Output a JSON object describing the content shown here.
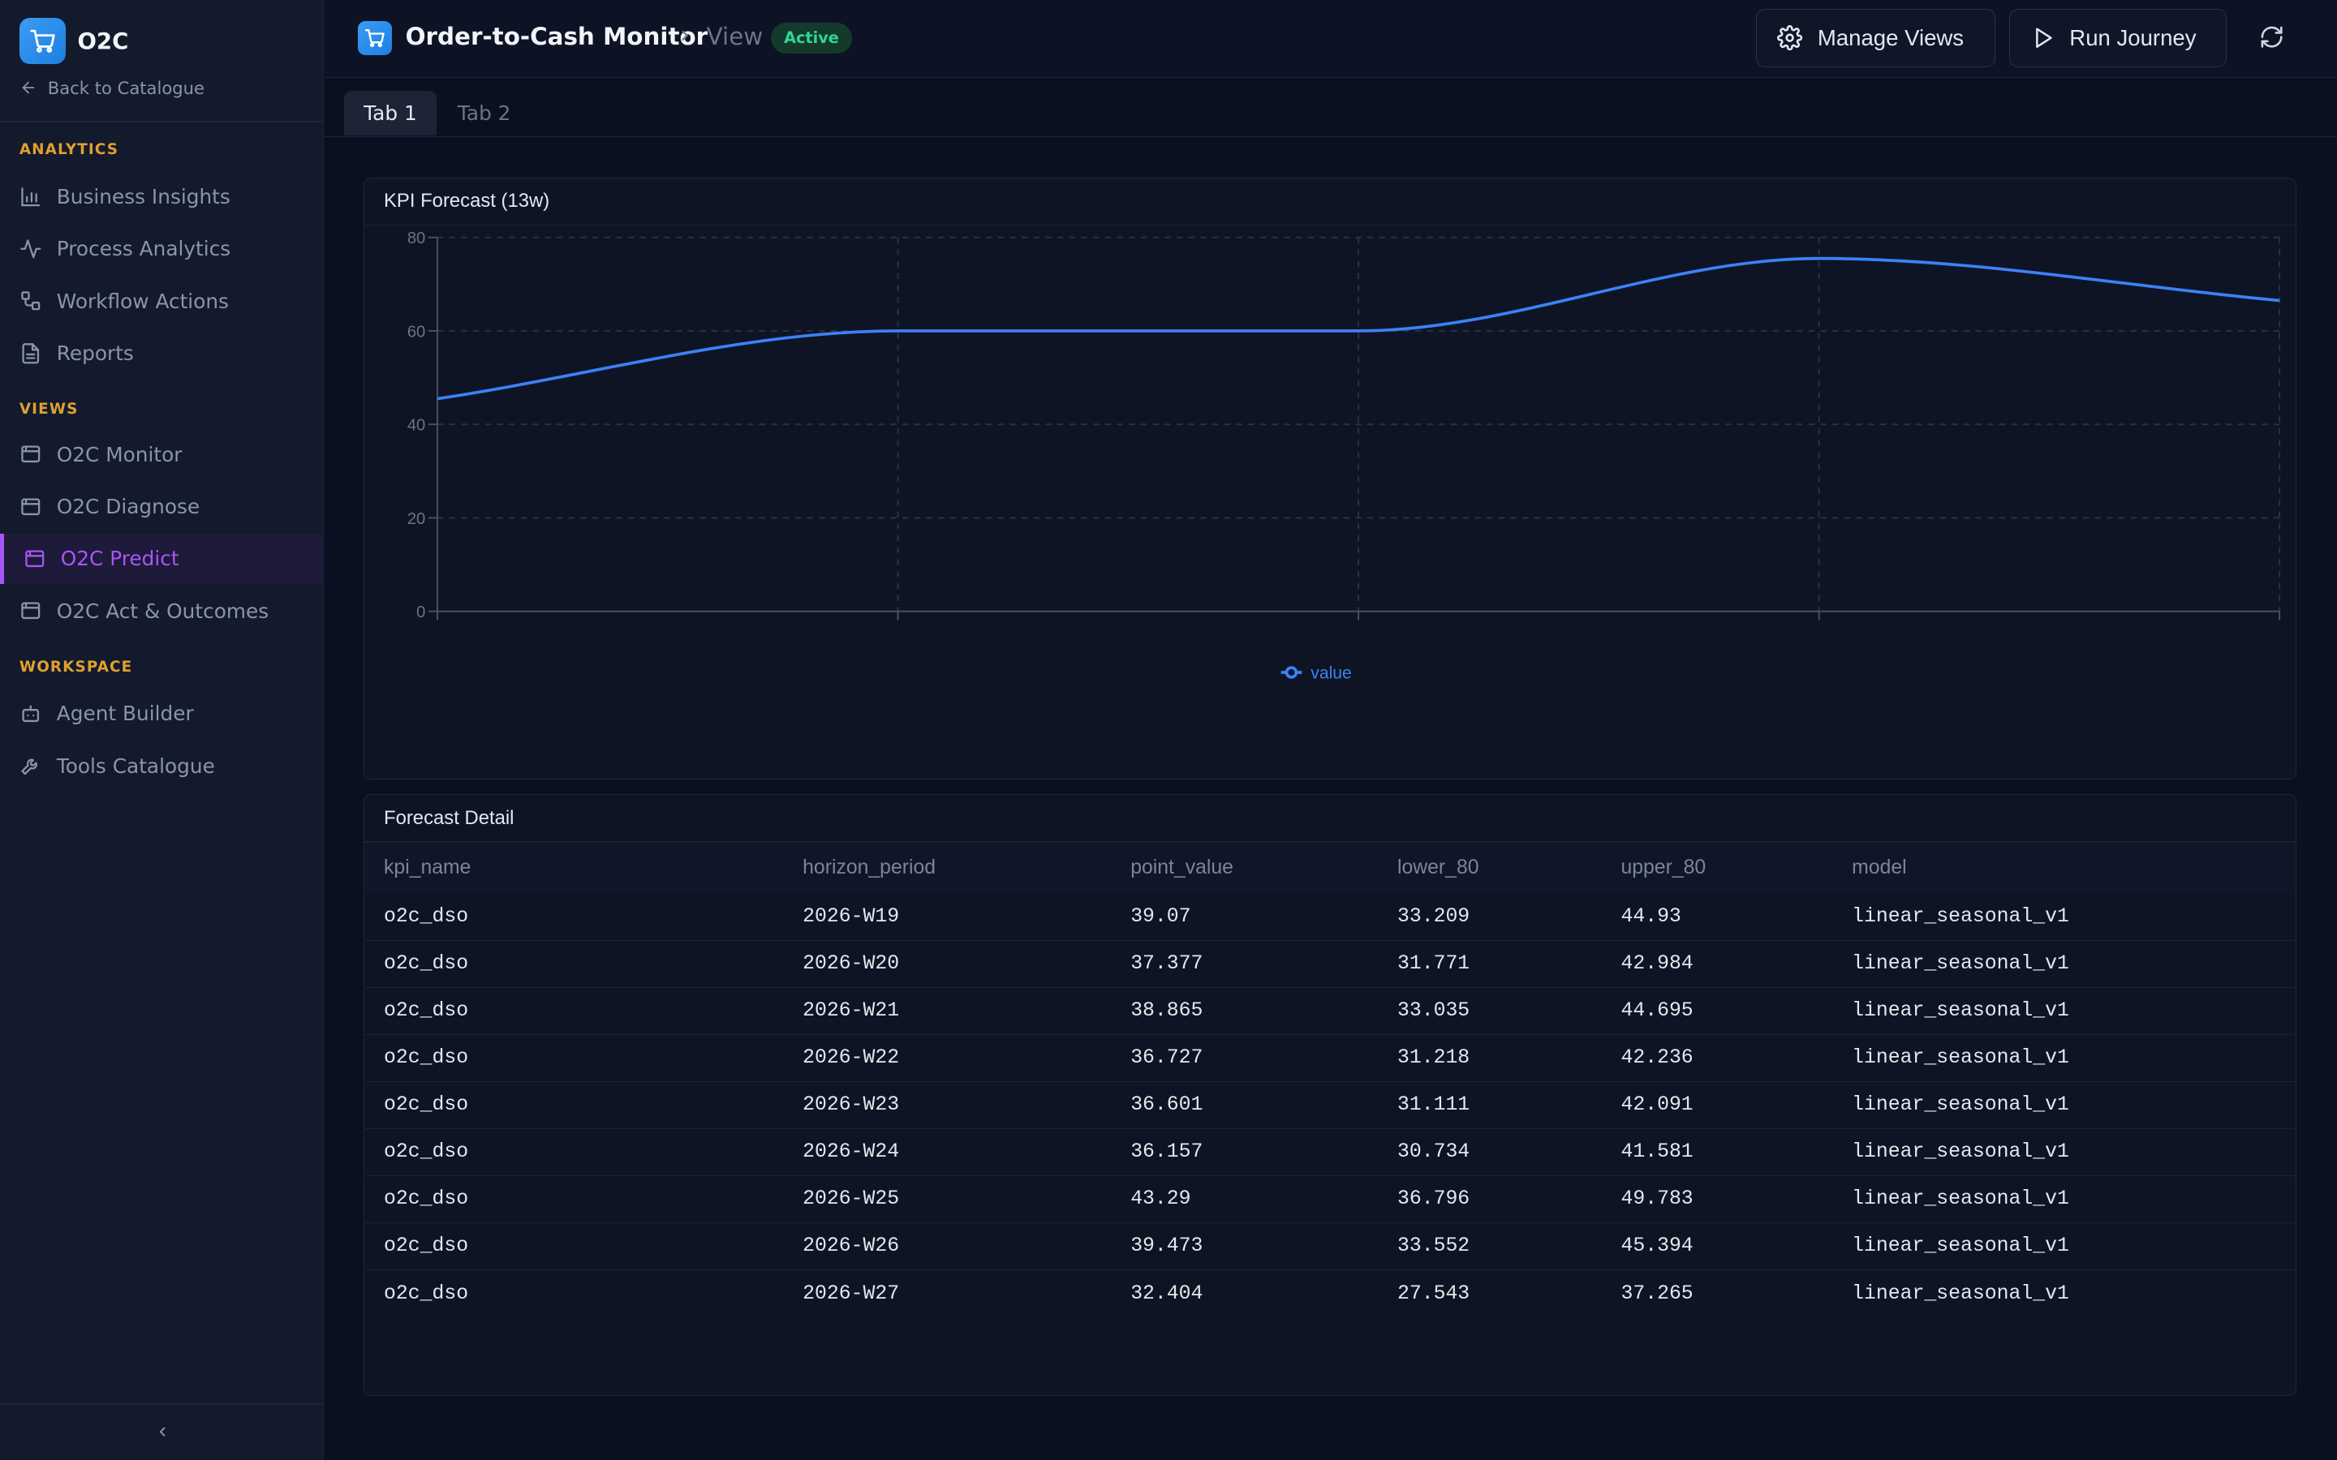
{
  "sidebar": {
    "brand": "O2C",
    "back_label": "Back to Catalogue",
    "sections": {
      "analytics": "ANALYTICS",
      "views": "VIEWS",
      "workspace": "WORKSPACE"
    },
    "items": {
      "business_insights": "Business Insights",
      "process_analytics": "Process Analytics",
      "workflow_actions": "Workflow Actions",
      "reports": "Reports",
      "o2c_monitor": "O2C Monitor",
      "o2c_diagnose": "O2C Diagnose",
      "o2c_predict": "O2C Predict",
      "o2c_act": "O2C Act & Outcomes",
      "agent_builder": "Agent Builder",
      "tools_catalogue": "Tools Catalogue"
    },
    "active_item": "o2c_predict"
  },
  "header": {
    "title": "Order-to-Cash Monitor",
    "view_label": "View",
    "badge": "Active",
    "manage_views": "Manage Views",
    "run_journey": "Run Journey"
  },
  "tabs": [
    "Tab 1",
    "Tab 2"
  ],
  "colors": {
    "accent": "#a855f7",
    "line": "#3b82f6",
    "section": "#e0a030",
    "badge": "#34d399"
  },
  "chart_panel": {
    "title": "KPI Forecast (13w)"
  },
  "chart_data": {
    "type": "line",
    "title": "KPI Forecast (13w)",
    "y_ticks": [
      0,
      20,
      40,
      60,
      80
    ],
    "ylim": [
      0,
      80
    ],
    "x": [
      0,
      1,
      2,
      3,
      4
    ],
    "series": [
      {
        "name": "value",
        "values": [
          45.5,
          60,
          60,
          75.5,
          66.5
        ]
      }
    ],
    "grid": true,
    "legend": "bottom-center"
  },
  "table_panel": {
    "title": "Forecast Detail",
    "columns": [
      "kpi_name",
      "horizon_period",
      "point_value",
      "lower_80",
      "upper_80",
      "model"
    ],
    "rows": [
      [
        "o2c_dso",
        "2026-W19",
        "39.07",
        "33.209",
        "44.93",
        "linear_seasonal_v1"
      ],
      [
        "o2c_dso",
        "2026-W20",
        "37.377",
        "31.771",
        "42.984",
        "linear_seasonal_v1"
      ],
      [
        "o2c_dso",
        "2026-W21",
        "38.865",
        "33.035",
        "44.695",
        "linear_seasonal_v1"
      ],
      [
        "o2c_dso",
        "2026-W22",
        "36.727",
        "31.218",
        "42.236",
        "linear_seasonal_v1"
      ],
      [
        "o2c_dso",
        "2026-W23",
        "36.601",
        "31.111",
        "42.091",
        "linear_seasonal_v1"
      ],
      [
        "o2c_dso",
        "2026-W24",
        "36.157",
        "30.734",
        "41.581",
        "linear_seasonal_v1"
      ],
      [
        "o2c_dso",
        "2026-W25",
        "43.29",
        "36.796",
        "49.783",
        "linear_seasonal_v1"
      ],
      [
        "o2c_dso",
        "2026-W26",
        "39.473",
        "33.552",
        "45.394",
        "linear_seasonal_v1"
      ],
      [
        "o2c_dso",
        "2026-W27",
        "32.404",
        "27.543",
        "37.265",
        "linear_seasonal_v1"
      ]
    ]
  }
}
